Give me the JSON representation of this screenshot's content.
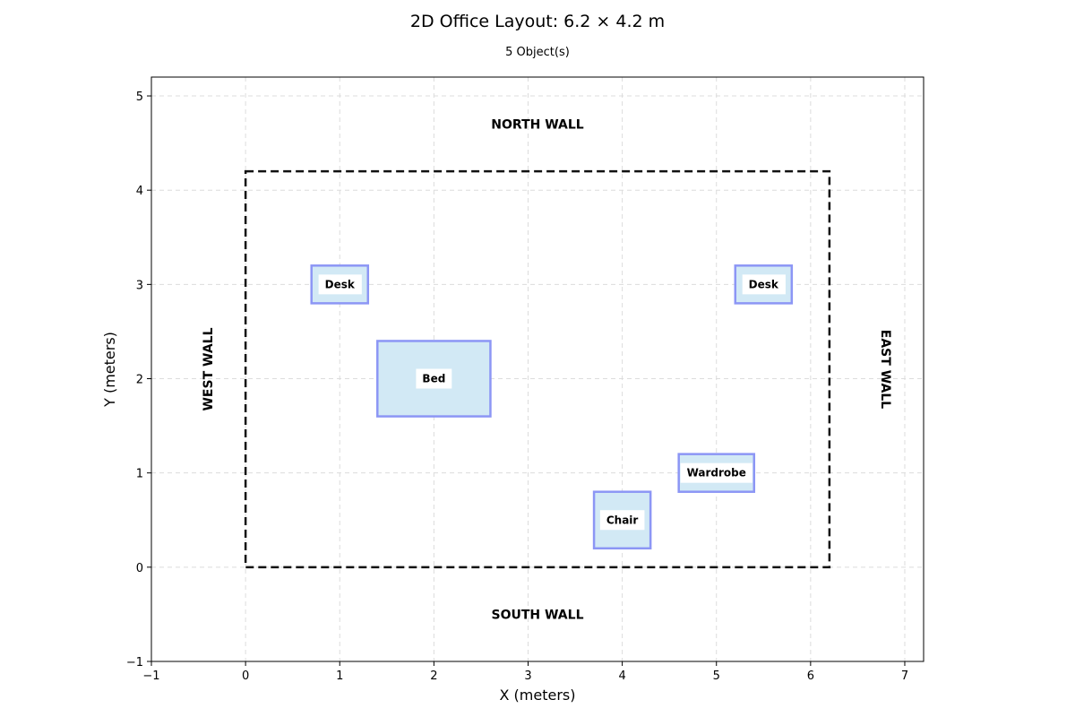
{
  "title": "2D Office Layout: 6.2 × 4.2 m",
  "subtitle": "5 Object(s)",
  "axes": {
    "xlabel": "X (meters)",
    "ylabel": "Y (meters)",
    "xlim": [
      -1,
      7.2
    ],
    "ylim": [
      -1,
      5.2
    ],
    "xticks": [
      -1,
      0,
      1,
      2,
      3,
      4,
      5,
      6,
      7
    ],
    "yticks": [
      -1,
      0,
      1,
      2,
      3,
      4,
      5
    ],
    "xtick_labels": [
      "−1",
      "0",
      "1",
      "2",
      "3",
      "4",
      "5",
      "6",
      "7"
    ],
    "ytick_labels": [
      "−1",
      "0",
      "1",
      "2",
      "3",
      "4",
      "5"
    ],
    "grid": true
  },
  "room": {
    "width": 6.2,
    "height": 4.2
  },
  "walls": {
    "north": "NORTH WALL",
    "south": "SOUTH WALL",
    "west": "WEST WALL",
    "east": "EAST WALL"
  },
  "colors": {
    "object_fill": "#d2e9f5",
    "object_stroke": "#8c96f5",
    "room_outline": "#111111",
    "grid": "#dcdcdc"
  },
  "chart_data": {
    "type": "floor-plan",
    "objects": [
      {
        "label": "Desk",
        "x": 0.7,
        "y": 2.8,
        "w": 0.6,
        "h": 0.4
      },
      {
        "label": "Desk",
        "x": 5.2,
        "y": 2.8,
        "w": 0.6,
        "h": 0.4
      },
      {
        "label": "Bed",
        "x": 1.4,
        "y": 1.6,
        "w": 1.2,
        "h": 0.8
      },
      {
        "label": "Wardrobe",
        "x": 4.6,
        "y": 0.8,
        "w": 0.8,
        "h": 0.4
      },
      {
        "label": "Chair",
        "x": 3.7,
        "y": 0.2,
        "w": 0.6,
        "h": 0.6
      }
    ]
  }
}
